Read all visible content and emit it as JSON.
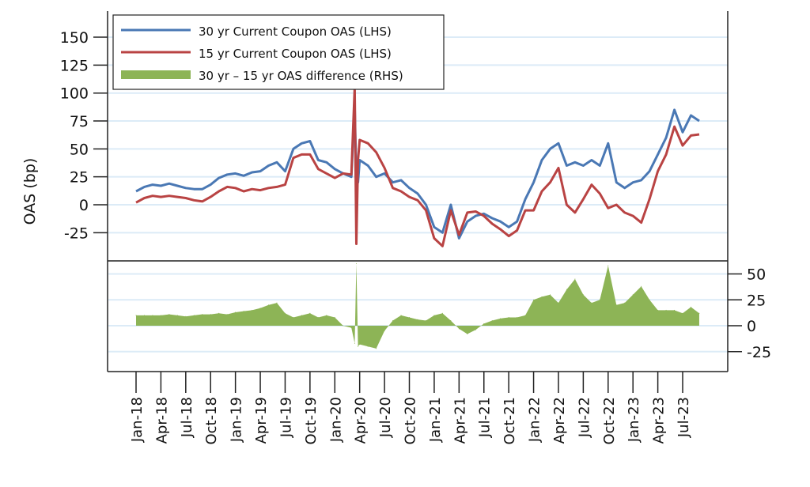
{
  "chart_data": {
    "type": "line",
    "title": "",
    "ylabel": "OAS (bp)",
    "ylim_lhs": [
      -50,
      170
    ],
    "ylim_rhs": [
      -44,
      62
    ],
    "grid": true,
    "legend_position": "top-left",
    "lhs_ticks": [
      "150",
      "125",
      "100",
      "75",
      "50",
      "25",
      "0",
      "-25"
    ],
    "lhs_tick_values": [
      150,
      125,
      100,
      75,
      50,
      25,
      0,
      -25
    ],
    "rhs_ticks": [
      "50",
      "25",
      "0",
      "-25"
    ],
    "rhs_tick_values": [
      50,
      25,
      0,
      -25
    ],
    "x_tick_labels": [
      "Jan-18",
      "Apr-18",
      "Jul-18",
      "Oct-18",
      "Jan-19",
      "Apr-19",
      "Jul-19",
      "Oct-19",
      "Jan-20",
      "Apr-20",
      "Jul-20",
      "Oct-20",
      "Jan-21",
      "Apr-21",
      "Jul-21",
      "Oct-21",
      "Jan-22",
      "Apr-22",
      "Jul-22",
      "Oct-22",
      "Jan-23",
      "Apr-23",
      "Jul-23"
    ],
    "x_tick_months": [
      0,
      3,
      6,
      9,
      12,
      15,
      18,
      21,
      24,
      27,
      30,
      33,
      36,
      39,
      42,
      45,
      48,
      51,
      54,
      57,
      60,
      63,
      66
    ],
    "x_unit": "months since Jan-18",
    "x": [
      0,
      1,
      2,
      3,
      4,
      5,
      6,
      7,
      8,
      9,
      10,
      11,
      12,
      13,
      14,
      15,
      16,
      17,
      18,
      19,
      20,
      21,
      22,
      23,
      24,
      25,
      26,
      26.4,
      26.6,
      26.8,
      27,
      28,
      29,
      30,
      31,
      32,
      33,
      34,
      35,
      36,
      37,
      38,
      39,
      40,
      41,
      42,
      43,
      44,
      45,
      46,
      47,
      48,
      49,
      50,
      51,
      52,
      53,
      54,
      55,
      56,
      57,
      58,
      59,
      60,
      61,
      62,
      63,
      64,
      65,
      66,
      67,
      68
    ],
    "series": [
      {
        "name": "30 yr Current Coupon OAS (LHS)",
        "axis": "lhs",
        "color": "#4a78b4",
        "values": [
          12,
          16,
          18,
          17,
          19,
          17,
          15,
          14,
          14,
          18,
          24,
          27,
          28,
          26,
          29,
          30,
          35,
          38,
          30,
          50,
          55,
          57,
          40,
          38,
          32,
          28,
          25,
          88,
          25,
          20,
          40,
          35,
          25,
          28,
          20,
          22,
          15,
          10,
          0,
          -20,
          -25,
          0,
          -30,
          -15,
          -10,
          -8,
          -12,
          -15,
          -20,
          -15,
          5,
          20,
          40,
          50,
          55,
          35,
          38,
          35,
          40,
          35,
          55,
          20,
          15,
          20,
          22,
          30,
          45,
          60,
          85,
          65,
          80,
          75
        ]
      },
      {
        "name": "15 yr Current Coupon OAS (LHS)",
        "axis": "lhs",
        "color": "#b94343",
        "values": [
          2,
          6,
          8,
          7,
          8,
          7,
          6,
          4,
          3,
          7,
          12,
          16,
          15,
          12,
          14,
          13,
          15,
          16,
          18,
          42,
          45,
          45,
          32,
          28,
          24,
          28,
          27,
          105,
          -35,
          40,
          58,
          55,
          47,
          33,
          15,
          12,
          7,
          4,
          -5,
          -30,
          -37,
          -5,
          -27,
          -7,
          -6,
          -10,
          -17,
          -22,
          -28,
          -23,
          -5,
          -5,
          12,
          20,
          33,
          0,
          -7,
          5,
          18,
          10,
          -3,
          0,
          -7,
          -10,
          -16,
          5,
          30,
          45,
          70,
          53,
          62,
          63
        ]
      },
      {
        "name": "30 yr – 15 yr OAS difference (RHS)",
        "axis": "rhs",
        "color": "#8db456",
        "values": [
          10,
          10,
          10,
          10,
          11,
          10,
          9,
          10,
          11,
          11,
          12,
          11,
          13,
          14,
          15,
          17,
          20,
          22,
          12,
          8,
          10,
          12,
          8,
          10,
          8,
          0,
          -2,
          -17,
          60,
          -20,
          -18,
          -20,
          -22,
          -5,
          5,
          10,
          8,
          6,
          5,
          10,
          12,
          5,
          -3,
          -8,
          -4,
          2,
          5,
          7,
          8,
          8,
          10,
          25,
          28,
          30,
          22,
          35,
          45,
          30,
          22,
          25,
          58,
          20,
          22,
          30,
          38,
          25,
          15,
          15,
          15,
          12,
          18,
          12
        ]
      }
    ]
  }
}
